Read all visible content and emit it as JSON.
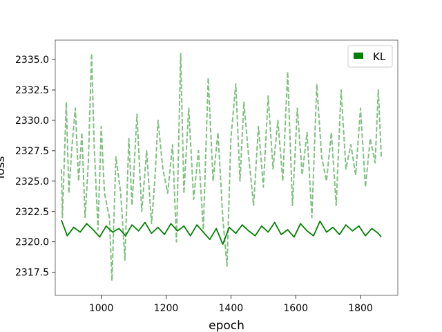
{
  "chart_data": {
    "type": "line",
    "title": "",
    "xlabel": "epoch",
    "ylabel": "loss",
    "xlim": [
      858,
      1915
    ],
    "ylim": [
      2315.6,
      2336.6
    ],
    "x_ticks": [
      1000,
      1200,
      1400,
      1600,
      1800
    ],
    "x_tick_labels": [
      "1000",
      "1200",
      "1400",
      "1600",
      "1800"
    ],
    "y_ticks": [
      2317.5,
      2320.0,
      2322.5,
      2325.0,
      2327.5,
      2330.0,
      2332.5,
      2335.0
    ],
    "y_tick_labels": [
      "2317.5",
      "2320.0",
      "2322.5",
      "2325.0",
      "2327.5",
      "2330.0",
      "2332.5",
      "2335.0"
    ],
    "grid": false,
    "legend": {
      "placement": "top-right",
      "entries": [
        "KL"
      ]
    },
    "x_range": [
      877,
      1864
    ],
    "series": [
      {
        "name": "KL",
        "style": "solid",
        "color": "#008000",
        "x": [
          877,
          895,
          915,
          935,
          955,
          975,
          995,
          1015,
          1035,
          1055,
          1075,
          1095,
          1115,
          1135,
          1155,
          1175,
          1195,
          1215,
          1235,
          1255,
          1275,
          1295,
          1315,
          1335,
          1355,
          1375,
          1395,
          1415,
          1435,
          1455,
          1475,
          1495,
          1515,
          1535,
          1555,
          1575,
          1595,
          1615,
          1635,
          1655,
          1675,
          1695,
          1715,
          1735,
          1755,
          1775,
          1795,
          1815,
          1835,
          1855,
          1864
        ],
        "values": [
          2321.8,
          2320.5,
          2321.2,
          2320.8,
          2321.5,
          2321.0,
          2320.4,
          2321.3,
          2320.8,
          2321.1,
          2320.5,
          2321.4,
          2320.9,
          2321.6,
          2320.7,
          2321.2,
          2320.6,
          2321.5,
          2320.9,
          2321.3,
          2320.5,
          2321.4,
          2320.8,
          2320.2,
          2321.1,
          2319.8,
          2321.2,
          2320.7,
          2321.4,
          2320.9,
          2320.5,
          2321.3,
          2320.8,
          2321.6,
          2320.6,
          2321.0,
          2320.4,
          2321.5,
          2320.9,
          2320.5,
          2321.7,
          2320.8,
          2321.2,
          2320.6,
          2321.4,
          2320.9,
          2321.3,
          2320.5,
          2321.1,
          2320.7,
          2320.4
        ]
      },
      {
        "name": "",
        "style": "dashed",
        "color": "#80c080",
        "x": [
          877,
          880,
          892,
          900,
          910,
          920,
          930,
          940,
          950,
          960,
          970,
          978,
          990,
          1000,
          1010,
          1025,
          1033,
          1045,
          1060,
          1073,
          1085,
          1095,
          1110,
          1125,
          1140,
          1155,
          1165,
          1175,
          1190,
          1205,
          1220,
          1232,
          1245,
          1255,
          1270,
          1285,
          1300,
          1315,
          1330,
          1345,
          1360,
          1375,
          1388,
          1400,
          1415,
          1428,
          1440,
          1455,
          1470,
          1485,
          1500,
          1515,
          1530,
          1545,
          1560,
          1575,
          1590,
          1605,
          1620,
          1635,
          1650,
          1665,
          1680,
          1695,
          1710,
          1725,
          1740,
          1755,
          1770,
          1785,
          1800,
          1815,
          1830,
          1845,
          1855,
          1864
        ],
        "values": [
          2326.0,
          2322.0,
          2331.5,
          2324.0,
          2328.0,
          2331.0,
          2325.0,
          2329.0,
          2322.0,
          2326.5,
          2335.5,
          2328.0,
          2321.0,
          2329.5,
          2324.0,
          2322.0,
          2316.8,
          2327.0,
          2324.0,
          2318.5,
          2328.5,
          2323.0,
          2330.5,
          2322.5,
          2327.5,
          2321.5,
          2325.0,
          2330.0,
          2326.0,
          2324.0,
          2328.0,
          2320.0,
          2335.5,
          2324.0,
          2331.0,
          2323.5,
          2327.5,
          2321.0,
          2333.5,
          2325.0,
          2329.0,
          2322.0,
          2318.0,
          2328.5,
          2333.0,
          2325.0,
          2331.5,
          2327.0,
          2323.0,
          2329.5,
          2324.5,
          2332.0,
          2326.0,
          2330.0,
          2325.0,
          2334.0,
          2323.0,
          2331.0,
          2325.5,
          2329.0,
          2322.0,
          2333.0,
          2327.0,
          2325.0,
          2329.0,
          2323.0,
          2332.5,
          2326.0,
          2328.0,
          2325.5,
          2331.0,
          2324.5,
          2328.5,
          2326.5,
          2332.5,
          2327.0
        ]
      }
    ]
  }
}
